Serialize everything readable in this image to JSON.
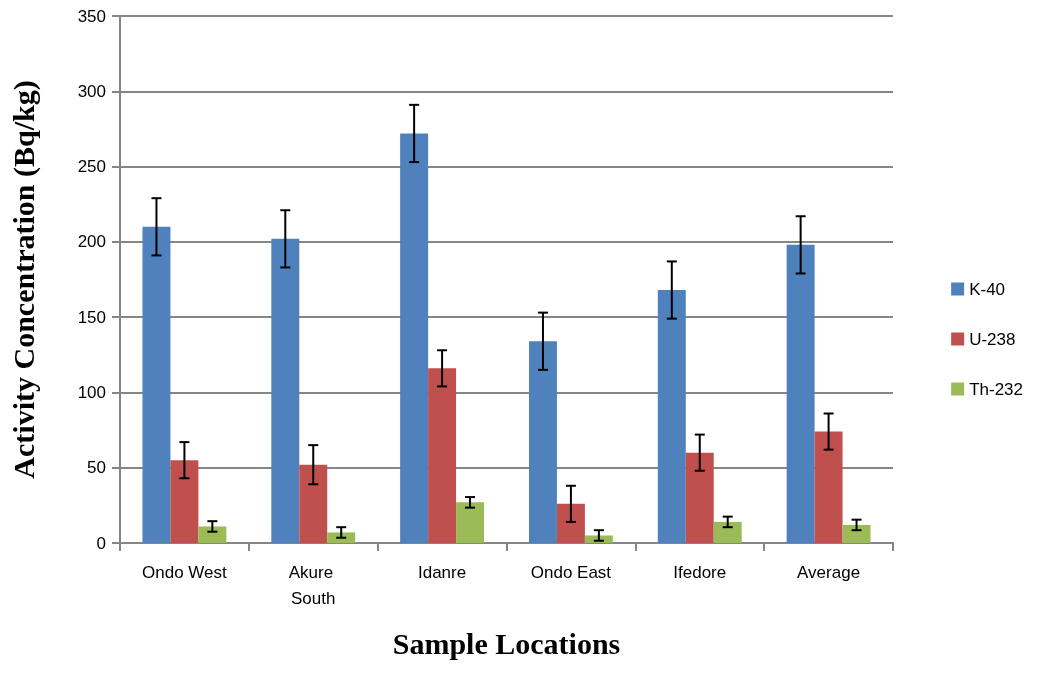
{
  "chart_data": {
    "type": "bar",
    "xlabel": "Sample Locations",
    "ylabel": "Activity Concentration (Bq/kg)",
    "categories": [
      "Ondo West",
      "Akure South",
      "Idanre",
      "Ondo East",
      "Ifedore",
      "Average"
    ],
    "series": [
      {
        "name": "K-40",
        "color": "#4f81bd",
        "values": [
          210,
          202,
          272,
          134,
          168,
          198
        ],
        "errors": [
          19,
          19,
          19,
          19,
          19,
          19
        ]
      },
      {
        "name": "U-238",
        "color": "#c0504d",
        "values": [
          55,
          52,
          116,
          26,
          60,
          74
        ],
        "errors": [
          12,
          13,
          12,
          12,
          12,
          12
        ]
      },
      {
        "name": "Th-232",
        "color": "#9bbb59",
        "values": [
          11,
          7,
          27,
          5,
          14,
          12
        ],
        "errors": [
          3.5,
          3.5,
          3.5,
          3.5,
          3.5,
          3.5
        ]
      }
    ],
    "ylim": [
      0,
      350
    ],
    "yticks": [
      0,
      50,
      100,
      150,
      200,
      250,
      300,
      350
    ],
    "grid": "y",
    "legend": "right"
  }
}
